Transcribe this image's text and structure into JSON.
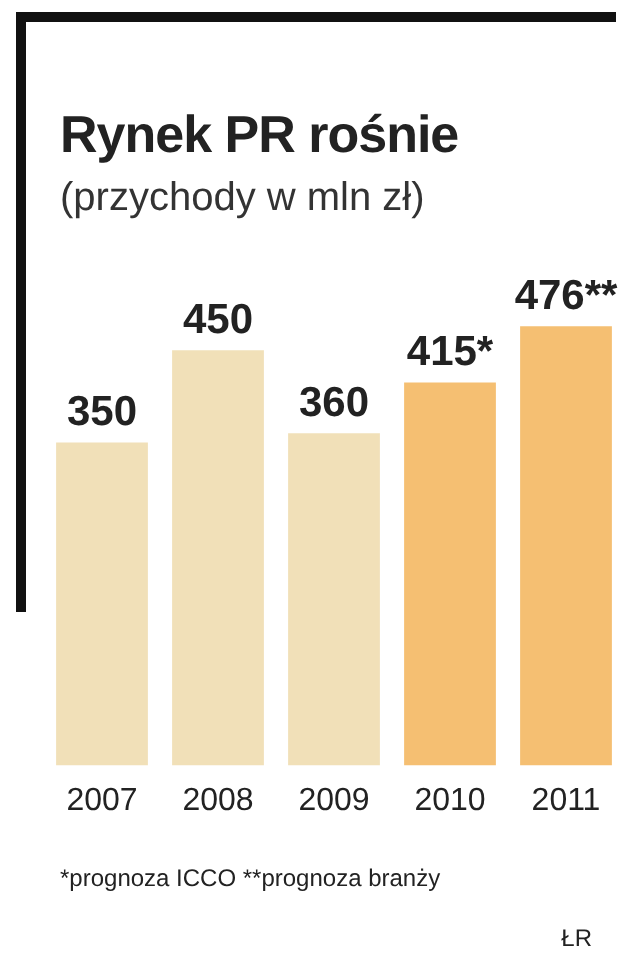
{
  "chart_data": {
    "type": "bar",
    "title": "Rynek PR rośnie",
    "subtitle": "(przychody w mln zł)",
    "categories": [
      "2007",
      "2008",
      "2009",
      "2010",
      "2011"
    ],
    "values": [
      350,
      450,
      360,
      415,
      476
    ],
    "colors": [
      "#f1e0b8",
      "#f1e0b8",
      "#f1e0b8",
      "#f5bf72",
      "#f5bf72"
    ],
    "value_labels": [
      "350",
      "450",
      "360",
      "415*",
      "476**"
    ],
    "annotations": [
      "*prognoza ICCO    **prognoza branży",
      "ŁR"
    ],
    "grid": false,
    "legend": false
  }
}
